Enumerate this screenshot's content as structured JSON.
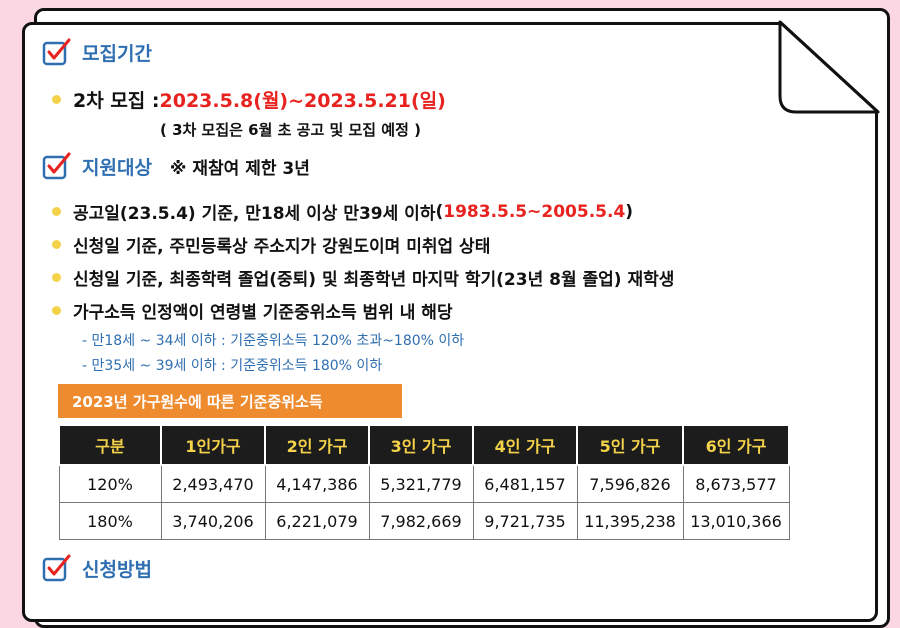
{
  "sections": {
    "recruit_period": {
      "title": "모집기간",
      "line_label": "2차 모집 : ",
      "line_dates": "2023.5.8(월)~2023.5.21(일)",
      "sub_note": "( 3차 모집은 6월 초 공고 및 모집 예정 )"
    },
    "eligibility": {
      "title": "지원대상",
      "note": "※ 재참여 제한 3년",
      "items": [
        {
          "text": "공고일(23.5.4) 기준, 만18세 이상 만39세 이하 ",
          "highlight_prefix": "(",
          "highlight": "1983.5.5~2005.5.4",
          "highlight_suffix": ")"
        },
        {
          "text": "신청일 기준, 주민등록상 주소지가 강원도이며 미취업 상태"
        },
        {
          "text": "신청일 기준, 최종학력 졸업(중퇴) 및 최종학년 마지막 학기(23년 8월 졸업) 재학생"
        },
        {
          "text": "가구소득 인정액이 연령별 기준중위소득 범위 내 해당"
        }
      ],
      "handwritten": [
        "- 만18세 ~ 34세 이하 : 기준중위소득 120% 초과~180% 이하",
        "- 만35세 ~ 39세 이하 : 기준중위소득 180% 이하"
      ]
    },
    "income_table": {
      "banner": "2023년 가구원수에 따른 기준중위소득",
      "headers": [
        "구분",
        "1인가구",
        "2인 가구",
        "3인 가구",
        "4인 가구",
        "5인 가구",
        "6인 가구"
      ],
      "rows": [
        [
          "120%",
          "2,493,470",
          "4,147,386",
          "5,321,779",
          "6,481,157",
          "7,596,826",
          "8,673,577"
        ],
        [
          "180%",
          "3,740,206",
          "6,221,079",
          "7,982,669",
          "9,721,735",
          "11,395,238",
          "13,010,366"
        ]
      ]
    },
    "apply_method": {
      "title": "신청방법"
    }
  },
  "colors": {
    "heading": "#2f6fb1",
    "highlight": "#e8231f",
    "bullet": "#f4d24a",
    "banner": "#ee8b2e",
    "table_header_bg": "#1c1c1c",
    "table_header_text": "#f4d24a",
    "background": "#fbd6e3"
  },
  "icons": {
    "section": "checkbox-check-icon"
  }
}
